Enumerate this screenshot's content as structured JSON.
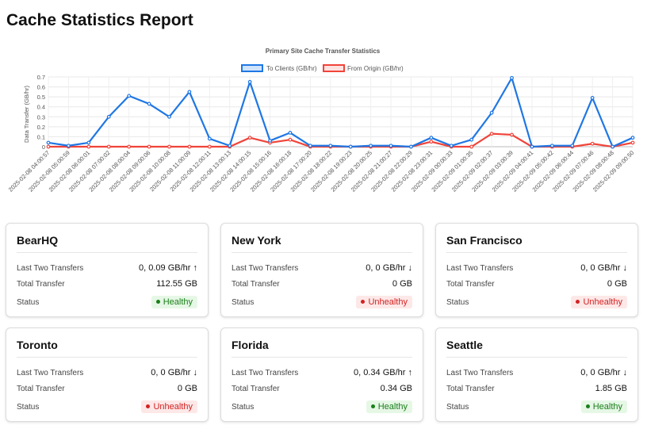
{
  "page": {
    "title": "Cache Statistics Report"
  },
  "chart_data": {
    "type": "line",
    "title": "Primary Site Cache Transfer Statistics",
    "ylabel": "Data Transfer (GB/hr)",
    "xlabel": "",
    "ylim": [
      0,
      0.7
    ],
    "yticks": [
      "0",
      "0.1",
      "0.2",
      "0.3",
      "0.4",
      "0.5",
      "0.6",
      "0.7"
    ],
    "grid": true,
    "legend_position": "top-center",
    "x": [
      "2025-02-08 04:00:57",
      "2025-02-08 05:00:59",
      "2025-02-08 06:00:01",
      "2025-02-08 07:00:02",
      "2025-02-08 08:00:04",
      "2025-02-08 09:00:06",
      "2025-02-08 10:00:08",
      "2025-02-08 11:00:09",
      "2025-02-08 12:00:11",
      "2025-02-08 13:00:13",
      "2025-02-08 14:00:15",
      "2025-02-08 15:00:16",
      "2025-02-08 16:00:18",
      "2025-02-08 17:00:20",
      "2025-02-08 18:00:22",
      "2025-02-08 19:00:23",
      "2025-02-08 20:00:25",
      "2025-02-08 21:00:27",
      "2025-02-08 22:00:29",
      "2025-02-08 23:00:31",
      "2025-02-09 00:00:33",
      "2025-02-09 01:00:35",
      "2025-02-09 02:00:37",
      "2025-02-09 03:00:39",
      "2025-02-09 04:00:41",
      "2025-02-09 05:00:42",
      "2025-02-09 06:00:44",
      "2025-02-09 07:00:46",
      "2025-02-09 08:00:48",
      "2025-02-09 09:00:50"
    ],
    "series": [
      {
        "name": "To Clients (GB/hr)",
        "color": "#1f77e4",
        "values": [
          0.04,
          0.01,
          0.04,
          0.3,
          0.51,
          0.43,
          0.3,
          0.55,
          0.08,
          0.01,
          0.65,
          0.06,
          0.14,
          0.01,
          0.01,
          0.0,
          0.01,
          0.01,
          0.0,
          0.09,
          0.01,
          0.07,
          0.34,
          0.69,
          0.0,
          0.01,
          0.01,
          0.49,
          0.0,
          0.09
        ]
      },
      {
        "name": "From Origin (GB/hr)",
        "color": "#f0443a",
        "values": [
          0.0,
          0.0,
          0.0,
          0.0,
          0.0,
          0.0,
          0.0,
          0.0,
          0.0,
          0.0,
          0.09,
          0.04,
          0.07,
          0.0,
          0.0,
          0.0,
          0.0,
          0.0,
          0.0,
          0.05,
          0.0,
          0.0,
          0.13,
          0.12,
          0.0,
          0.0,
          0.0,
          0.03,
          0.0,
          0.04
        ]
      }
    ]
  },
  "labels": {
    "last_two": "Last Two Transfers",
    "total": "Total Transfer",
    "status": "Status"
  },
  "sites": [
    {
      "name": "BearHQ",
      "last_two": "0, 0.09 GB/hr ↑",
      "total": "112.55 GB",
      "status": "Healthy",
      "healthy": true
    },
    {
      "name": "New York",
      "last_two": "0, 0 GB/hr ↓",
      "total": "0 GB",
      "status": "Unhealthy",
      "healthy": false
    },
    {
      "name": "San Francisco",
      "last_two": "0, 0 GB/hr ↓",
      "total": "0 GB",
      "status": "Unhealthy",
      "healthy": false
    },
    {
      "name": "Toronto",
      "last_two": "0, 0 GB/hr ↓",
      "total": "0 GB",
      "status": "Unhealthy",
      "healthy": false
    },
    {
      "name": "Florida",
      "last_two": "0, 0.34 GB/hr ↑",
      "total": "0.34 GB",
      "status": "Healthy",
      "healthy": true
    },
    {
      "name": "Seattle",
      "last_two": "0, 0 GB/hr ↓",
      "total": "1.85 GB",
      "status": "Healthy",
      "healthy": true
    }
  ]
}
